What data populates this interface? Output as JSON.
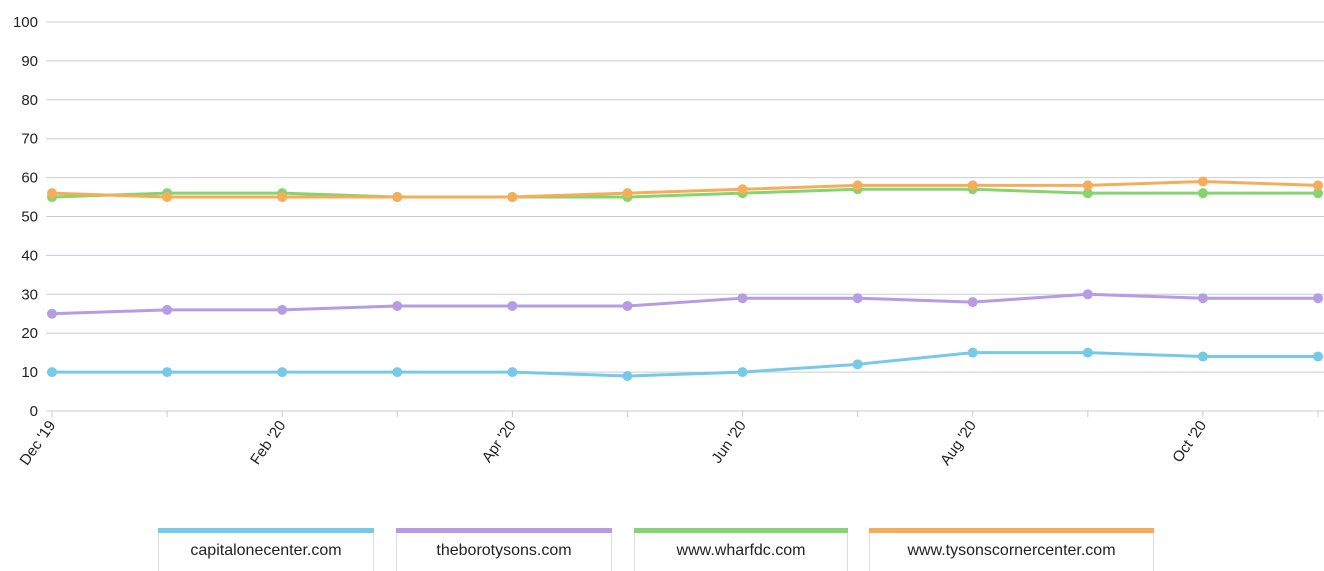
{
  "chart_data": {
    "type": "line",
    "x": [
      "Dec '19",
      "Jan '20",
      "Feb '20",
      "Mar '20",
      "Apr '20",
      "May '20",
      "Jun '20",
      "Jul '20",
      "Aug '20",
      "Sep '20",
      "Oct '20",
      "Nov '20"
    ],
    "x_tick_labels": [
      "Dec '19",
      "",
      "Feb '20",
      "",
      "Apr '20",
      "",
      "Jun '20",
      "",
      "Aug '20",
      "",
      "Oct '20",
      ""
    ],
    "ylim": [
      0,
      100
    ],
    "y_ticks": [
      0,
      10,
      20,
      30,
      40,
      50,
      60,
      70,
      80,
      90,
      100
    ],
    "grid": true,
    "legend_position": "bottom",
    "series": [
      {
        "name": "capitalonecenter.com",
        "color": "#76c9e8",
        "values": [
          10,
          10,
          10,
          10,
          10,
          9,
          10,
          12,
          15,
          15,
          14,
          14
        ]
      },
      {
        "name": "theborotysons.com",
        "color": "#b59ce3",
        "values": [
          25,
          26,
          26,
          27,
          27,
          27,
          29,
          29,
          28,
          30,
          29,
          29
        ]
      },
      {
        "name": "www.wharfdc.com",
        "color": "#86d46f",
        "values": [
          55,
          56,
          56,
          55,
          55,
          55,
          56,
          57,
          57,
          56,
          56,
          56
        ]
      },
      {
        "name": "www.tysonscornercenter.com",
        "color": "#f5ad5a",
        "values": [
          56,
          55,
          55,
          55,
          55,
          56,
          57,
          58,
          58,
          58,
          59,
          58
        ]
      }
    ]
  }
}
